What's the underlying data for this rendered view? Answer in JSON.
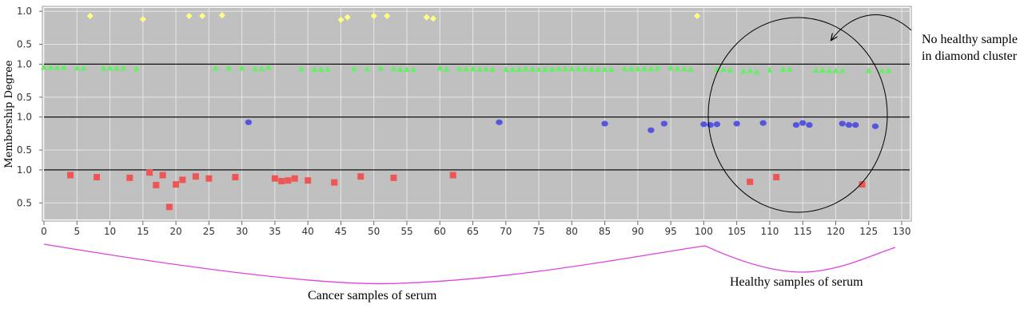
{
  "chart_data": {
    "type": "scatter",
    "ylabel": "Membership Degree",
    "xlim": [
      0,
      130
    ],
    "xticks": [
      0,
      5,
      10,
      15,
      20,
      25,
      30,
      35,
      40,
      45,
      50,
      55,
      60,
      65,
      70,
      75,
      80,
      85,
      90,
      95,
      100,
      105,
      110,
      115,
      120,
      125,
      130
    ],
    "panel_ylim": [
      0.25,
      1.05
    ],
    "panel_yticks": [
      1.0,
      0.5
    ],
    "panel_ytick_labels": [
      "1.0",
      "0.5"
    ],
    "grid": true,
    "series": [
      {
        "marker": "diamond",
        "color": "#ffff80",
        "points": [
          [
            7,
            0.93
          ],
          [
            15,
            0.88
          ],
          [
            22,
            0.93
          ],
          [
            24,
            0.93
          ],
          [
            27,
            0.94
          ],
          [
            45,
            0.87
          ],
          [
            46,
            0.91
          ],
          [
            50,
            0.93
          ],
          [
            52,
            0.93
          ],
          [
            58,
            0.91
          ],
          [
            59,
            0.89
          ],
          [
            99,
            0.93
          ]
        ]
      },
      {
        "marker": "triangle",
        "color": "#66ee66",
        "points": [
          [
            0,
            0.95
          ],
          [
            1,
            0.95
          ],
          [
            2,
            0.95
          ],
          [
            3,
            0.95
          ],
          [
            5,
            0.94
          ],
          [
            6,
            0.94
          ],
          [
            9,
            0.94
          ],
          [
            10,
            0.94
          ],
          [
            11,
            0.94
          ],
          [
            12,
            0.94
          ],
          [
            14,
            0.93
          ],
          [
            26,
            0.94
          ],
          [
            28,
            0.94
          ],
          [
            30,
            0.94
          ],
          [
            32,
            0.93
          ],
          [
            33,
            0.93
          ],
          [
            34,
            0.95
          ],
          [
            39,
            0.93
          ],
          [
            41,
            0.92
          ],
          [
            42,
            0.92
          ],
          [
            43,
            0.92
          ],
          [
            47,
            0.93
          ],
          [
            49,
            0.93
          ],
          [
            51,
            0.94
          ],
          [
            53,
            0.93
          ],
          [
            54,
            0.92
          ],
          [
            55,
            0.92
          ],
          [
            56,
            0.92
          ],
          [
            60,
            0.94
          ],
          [
            61,
            0.92
          ],
          [
            63,
            0.93
          ],
          [
            64,
            0.93
          ],
          [
            65,
            0.93
          ],
          [
            66,
            0.92
          ],
          [
            67,
            0.93
          ],
          [
            68,
            0.92
          ],
          [
            70,
            0.92
          ],
          [
            71,
            0.92
          ],
          [
            72,
            0.92
          ],
          [
            73,
            0.93
          ],
          [
            74,
            0.92
          ],
          [
            75,
            0.92
          ],
          [
            76,
            0.92
          ],
          [
            77,
            0.92
          ],
          [
            78,
            0.93
          ],
          [
            79,
            0.93
          ],
          [
            80,
            0.93
          ],
          [
            81,
            0.93
          ],
          [
            82,
            0.93
          ],
          [
            83,
            0.92
          ],
          [
            84,
            0.92
          ],
          [
            85,
            0.92
          ],
          [
            86,
            0.92
          ],
          [
            88,
            0.93
          ],
          [
            89,
            0.93
          ],
          [
            90,
            0.93
          ],
          [
            91,
            0.93
          ],
          [
            92,
            0.93
          ],
          [
            93,
            0.94
          ],
          [
            95,
            0.94
          ],
          [
            96,
            0.93
          ],
          [
            97,
            0.93
          ],
          [
            98,
            0.92
          ],
          [
            103,
            0.92
          ],
          [
            104,
            0.91
          ],
          [
            106,
            0.89
          ],
          [
            108,
            0.88
          ],
          [
            110,
            0.91
          ],
          [
            112,
            0.92
          ],
          [
            113,
            0.92
          ],
          [
            117,
            0.91
          ],
          [
            118,
            0.91
          ],
          [
            119,
            0.9
          ],
          [
            120,
            0.9
          ],
          [
            121,
            0.9
          ],
          [
            125,
            0.9
          ],
          [
            127,
            0.9
          ],
          [
            128,
            0.9
          ],
          [
            107,
            0.9
          ],
          [
            102,
            0.92
          ]
        ]
      },
      {
        "marker": "circle",
        "color": "#5555dd",
        "points": [
          [
            31,
            0.92
          ],
          [
            69,
            0.92
          ],
          [
            85,
            0.9
          ],
          [
            92,
            0.8
          ],
          [
            94,
            0.9
          ],
          [
            100,
            0.89
          ],
          [
            101,
            0.88
          ],
          [
            102,
            0.89
          ],
          [
            105,
            0.9
          ],
          [
            109,
            0.91
          ],
          [
            114,
            0.88
          ],
          [
            115,
            0.91
          ],
          [
            116,
            0.88
          ],
          [
            121,
            0.9
          ],
          [
            122,
            0.88
          ],
          [
            123,
            0.88
          ],
          [
            126,
            0.86
          ]
        ]
      },
      {
        "marker": "square",
        "color": "#ee5555",
        "points": [
          [
            4,
            0.92
          ],
          [
            8,
            0.89
          ],
          [
            13,
            0.88
          ],
          [
            16,
            0.96
          ],
          [
            17,
            0.77
          ],
          [
            18,
            0.92
          ],
          [
            19,
            0.44
          ],
          [
            20,
            0.78
          ],
          [
            21,
            0.85
          ],
          [
            23,
            0.9
          ],
          [
            25,
            0.87
          ],
          [
            29,
            0.89
          ],
          [
            35,
            0.87
          ],
          [
            36,
            0.83
          ],
          [
            37,
            0.84
          ],
          [
            38,
            0.87
          ],
          [
            40,
            0.84
          ],
          [
            44,
            0.81
          ],
          [
            48,
            0.9
          ],
          [
            53,
            0.88
          ],
          [
            62,
            0.92
          ],
          [
            107,
            0.82
          ],
          [
            111,
            0.89
          ],
          [
            124,
            0.78
          ]
        ]
      }
    ],
    "annotations": {
      "circle_note_line1": "No healthy sample",
      "circle_note_line2": "in diamond cluster",
      "cancer_label": "Cancer samples of serum",
      "healthy_label": "Healthy samples of serum"
    }
  }
}
